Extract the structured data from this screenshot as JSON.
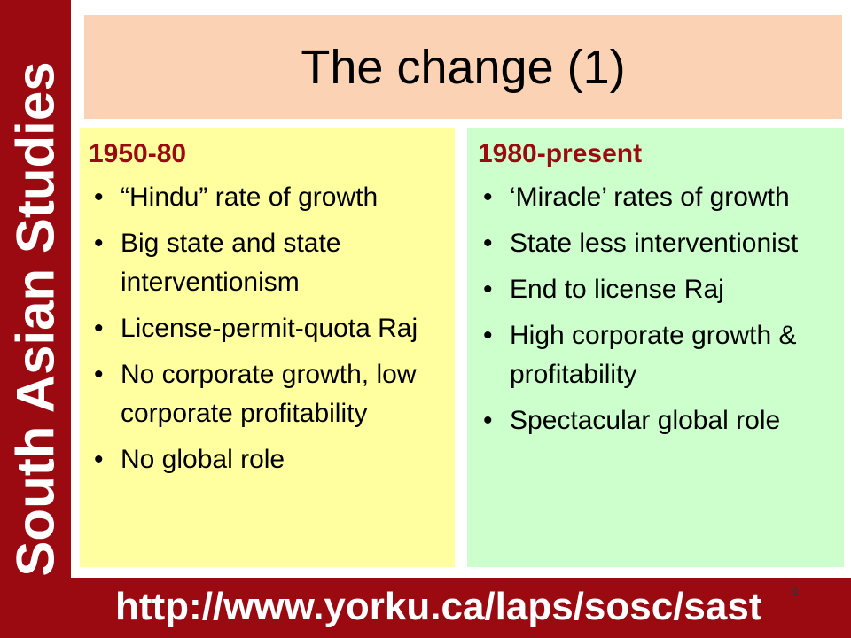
{
  "sidebar": "South Asian Studies",
  "title": "The change (1)",
  "columns": [
    {
      "heading": "1950-80",
      "items": [
        "“Hindu” rate of growth",
        "Big state and state interventionism",
        "License-permit-quota Raj",
        "No corporate growth, low corporate profitability",
        "No global role"
      ]
    },
    {
      "heading": "1980-present",
      "items": [
        "‘Miracle’ rates of growth",
        "State less interventionist",
        "End to license Raj",
        "High corporate growth & profitability",
        "Spectacular global role"
      ]
    }
  ],
  "footer": "http://www.yorku.ca/laps/sosc/sast",
  "page_number": "4"
}
